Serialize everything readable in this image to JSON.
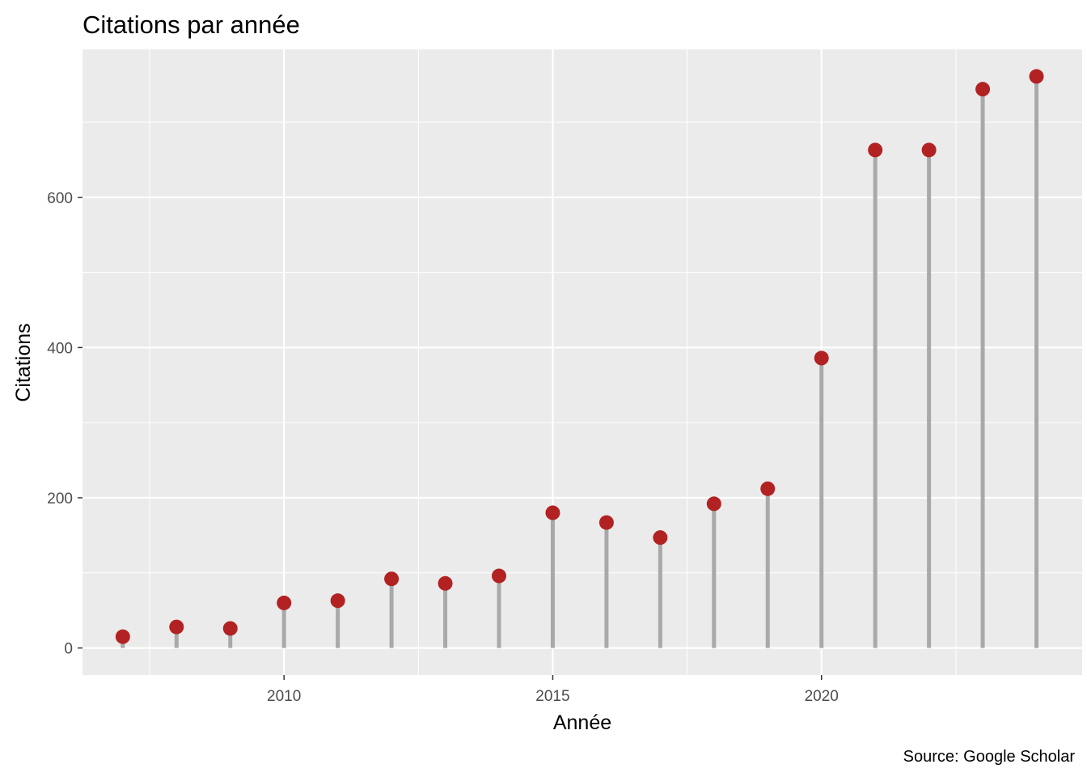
{
  "chart_data": {
    "type": "lollipop",
    "title": "Citations par année",
    "xlabel": "Année",
    "ylabel": "Citations",
    "caption": "Source: Google Scholar",
    "x": [
      2007,
      2008,
      2009,
      2010,
      2011,
      2012,
      2013,
      2014,
      2015,
      2016,
      2017,
      2018,
      2019,
      2020,
      2021,
      2022,
      2023,
      2024
    ],
    "values": [
      15,
      28,
      26,
      60,
      63,
      92,
      86,
      96,
      180,
      167,
      147,
      192,
      212,
      386,
      663,
      663,
      744,
      761
    ],
    "xlim": [
      2006.25,
      2024.85
    ],
    "ylim": [
      -36,
      797
    ],
    "xticks": [
      2010,
      2015,
      2020
    ],
    "yticks": [
      0,
      200,
      400,
      600
    ],
    "grid": true,
    "colors": {
      "panel": "#ebebeb",
      "grid": "#ffffff",
      "stem": "#a9a9a9",
      "point": "#b22222"
    }
  }
}
